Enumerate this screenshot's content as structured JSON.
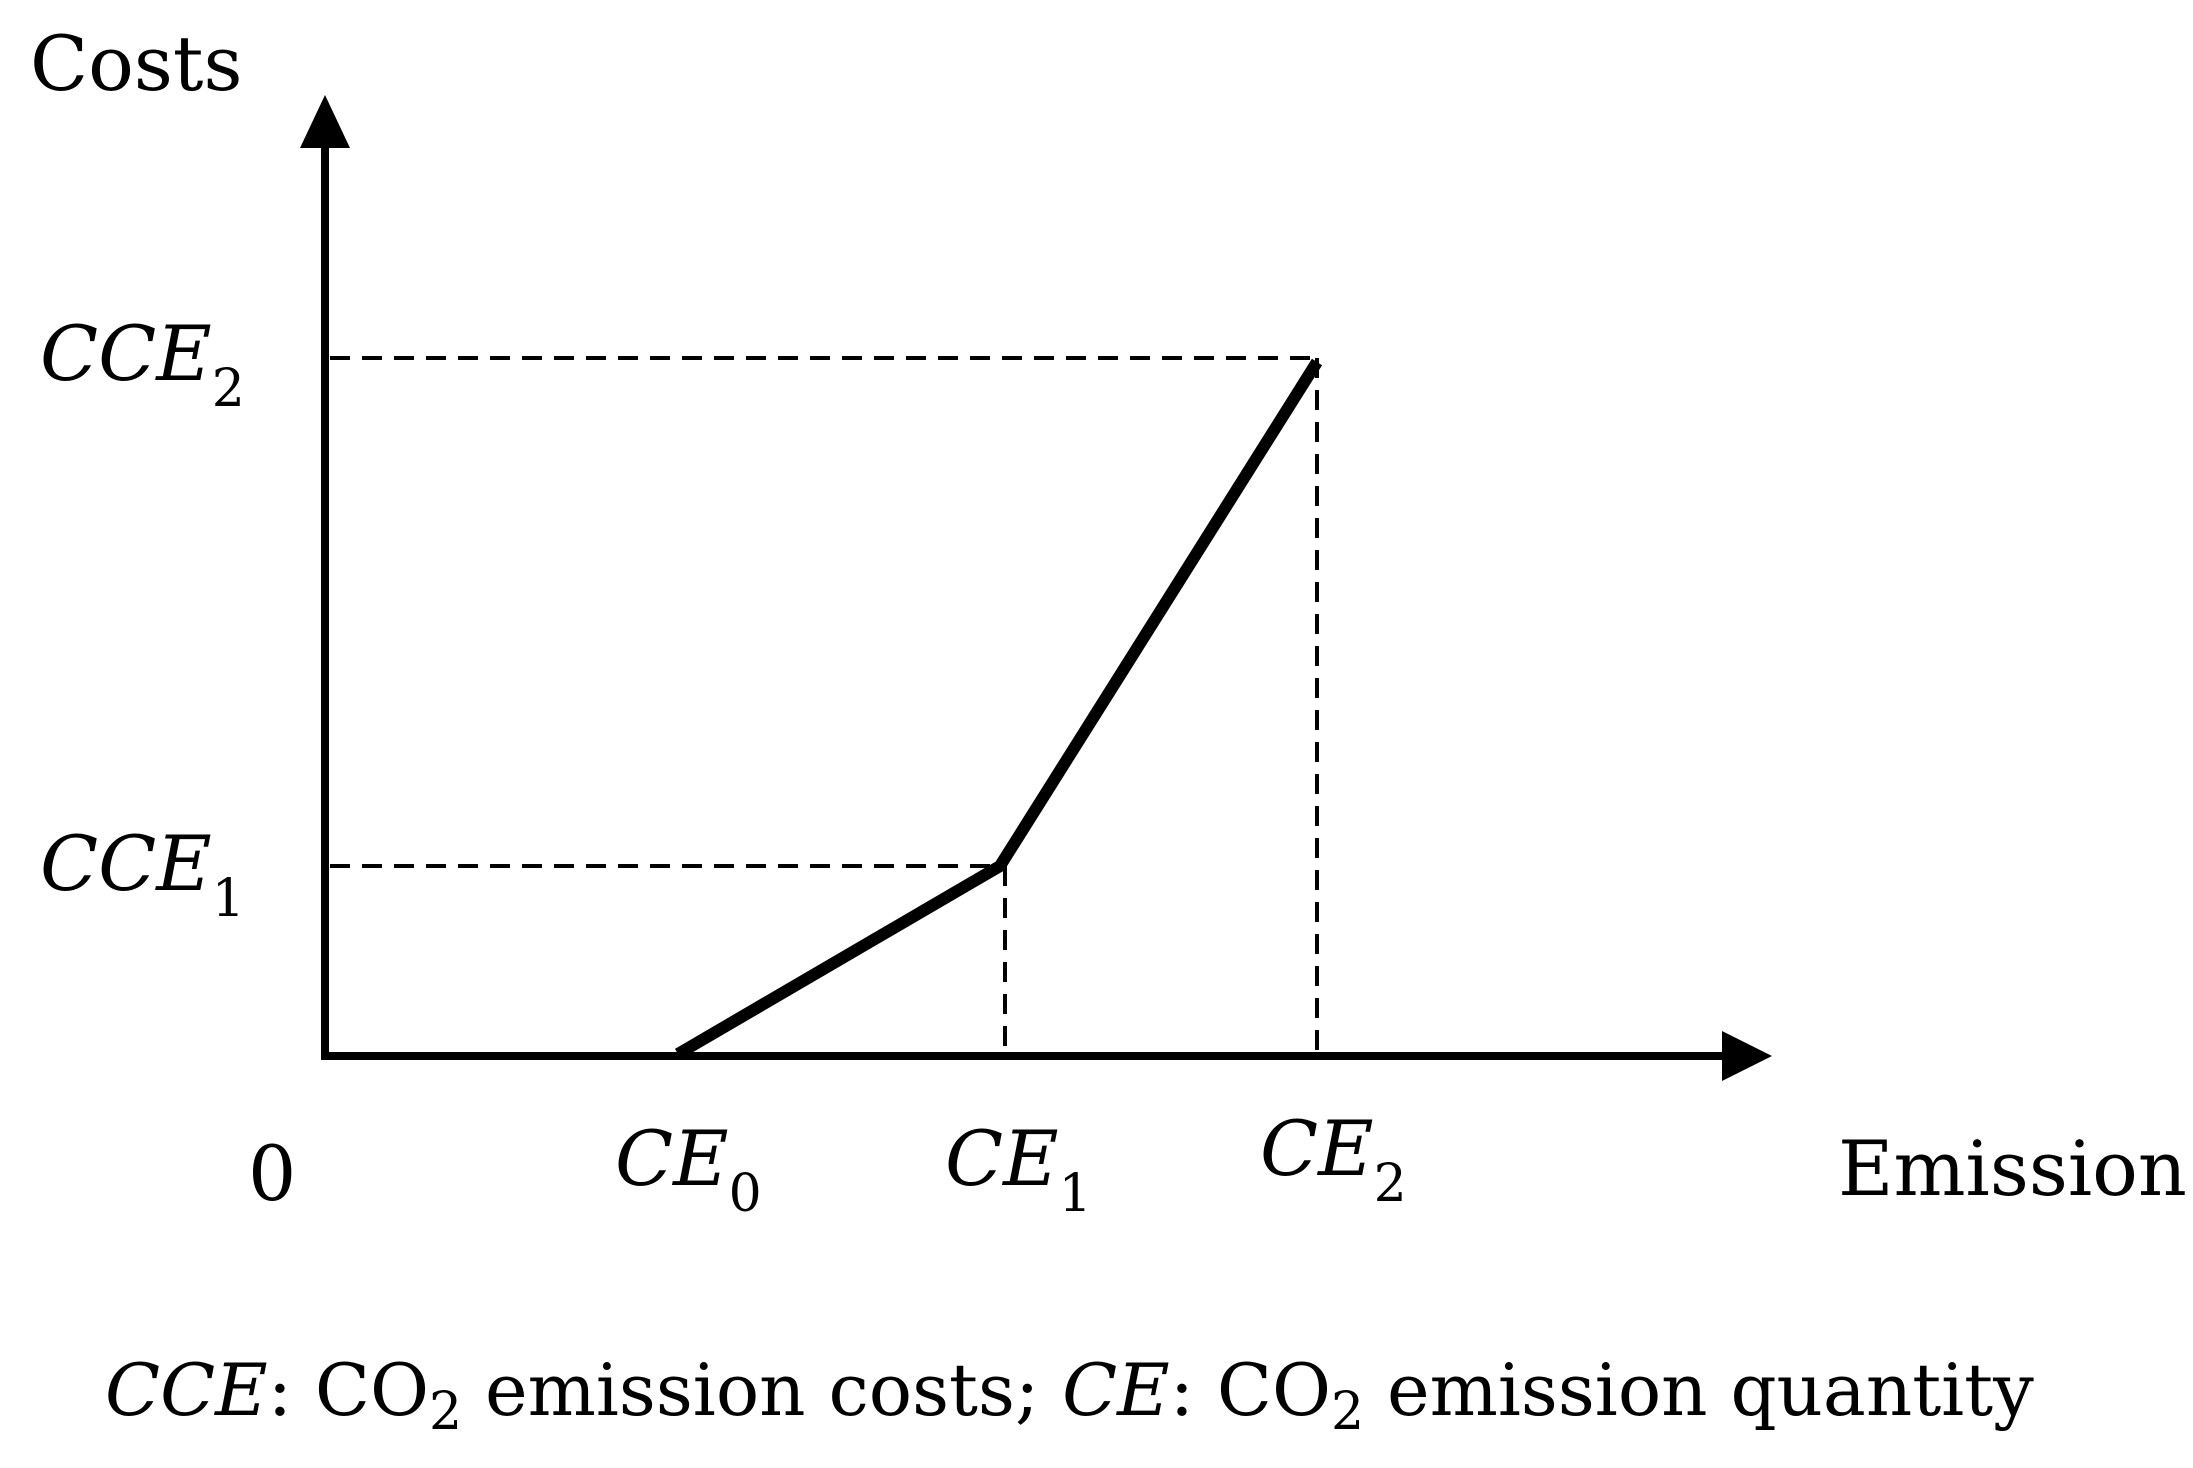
{
  "axes": {
    "y_label": "Costs",
    "x_label": "Emission",
    "origin_label": "0"
  },
  "y_ticks": [
    {
      "main": "CCE",
      "sub": "1"
    },
    {
      "main": "CCE",
      "sub": "2"
    }
  ],
  "x_ticks": [
    {
      "main": "CE",
      "sub": "0"
    },
    {
      "main": "CE",
      "sub": "1"
    },
    {
      "main": "CE",
      "sub": "2"
    }
  ],
  "curve": {
    "points": [
      {
        "x": "CE0",
        "y": "0"
      },
      {
        "x": "CE1",
        "y": "CCE1"
      },
      {
        "x": "CE2",
        "y": "CCE2"
      }
    ]
  },
  "caption": {
    "term1": "CCE",
    "def1_a": ": CO",
    "def1_sub": "2",
    "def1_b": " emission costs; ",
    "term2": "CE",
    "def2_a": ": CO",
    "def2_sub": "2",
    "def2_b": " emission quantity"
  }
}
